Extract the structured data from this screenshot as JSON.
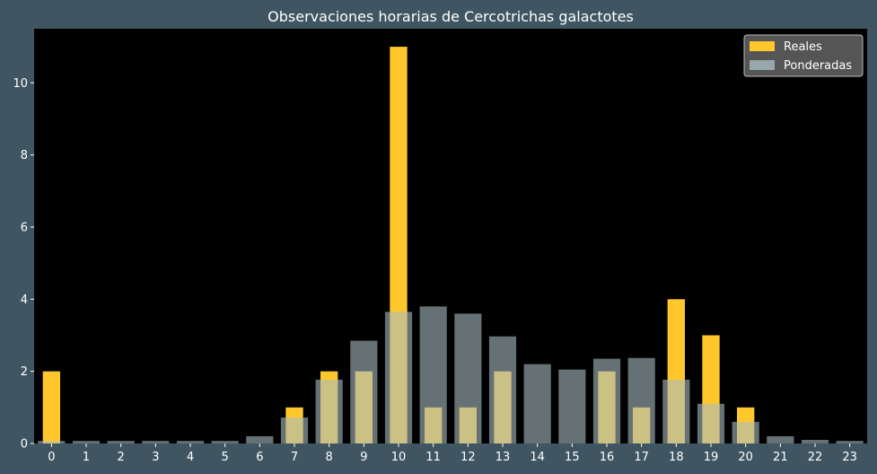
{
  "chart_data": {
    "type": "bar",
    "title": "Observaciones horarias de Cercotrichas galactotes",
    "xlabel": "",
    "ylabel": "",
    "categories": [
      "0",
      "1",
      "2",
      "3",
      "4",
      "5",
      "6",
      "7",
      "8",
      "9",
      "10",
      "11",
      "12",
      "13",
      "14",
      "15",
      "16",
      "17",
      "18",
      "19",
      "20",
      "21",
      "22",
      "23"
    ],
    "ylim": [
      0,
      11.5
    ],
    "yticks": [
      0,
      2,
      4,
      6,
      8,
      10
    ],
    "grid": false,
    "legend_position": "top-right",
    "series": [
      {
        "name": "Reales",
        "color": "#ffc72c",
        "values": [
          2,
          0,
          0,
          0,
          0,
          0,
          0,
          1,
          2,
          2,
          11,
          1,
          1,
          2,
          0,
          0,
          2,
          1,
          4,
          3,
          1,
          0,
          0,
          0
        ]
      },
      {
        "name": "Ponderadas",
        "color": "#a9bcc2",
        "opacity": 0.6,
        "values": [
          0.07,
          0.07,
          0.07,
          0.07,
          0.07,
          0.07,
          0.2,
          0.72,
          1.77,
          2.85,
          3.65,
          3.8,
          3.6,
          2.97,
          2.2,
          2.05,
          2.35,
          2.37,
          1.77,
          1.1,
          0.6,
          0.2,
          0.1,
          0.07
        ]
      }
    ]
  }
}
